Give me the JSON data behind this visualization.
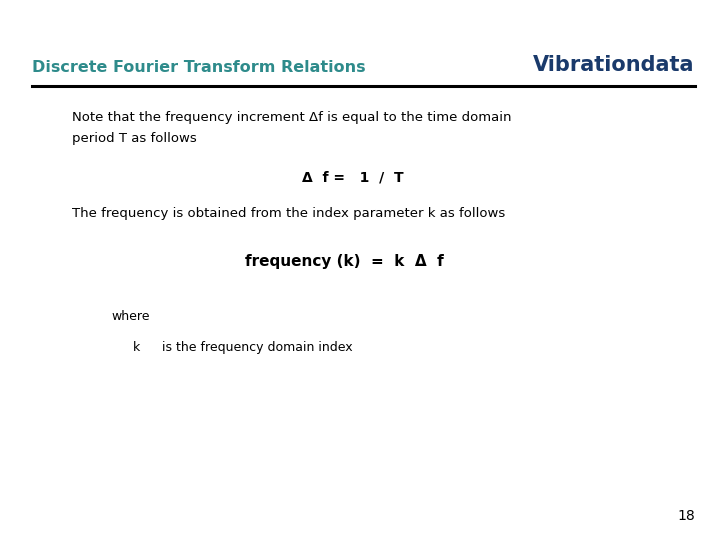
{
  "title_left": "Discrete Fourier Transform Relations",
  "title_right": "Vibrationdata",
  "title_left_color": "#2E8B8B",
  "title_right_color": "#1A3A6B",
  "line_color": "#000000",
  "background_color": "#FFFFFF",
  "body_text_color": "#000000",
  "page_number": "18",
  "para1_line1": "Note that the frequency increment Δf is equal to the time domain",
  "para1_line2": "period T as follows",
  "formula1": "Δ  f =   1  /  T",
  "para2": "The frequency is obtained from the index parameter k as follows",
  "formula2": "frequency (k)  =  k  Δ  f",
  "where_label": "where",
  "def1_key": "k",
  "def1_val": "is the frequency domain index",
  "title_fontsize": 11.5,
  "vibrationdata_fontsize": 15,
  "body_fontsize": 9.5,
  "formula1_fontsize": 10,
  "formula2_fontsize": 11,
  "where_fontsize": 9,
  "page_fontsize": 10
}
